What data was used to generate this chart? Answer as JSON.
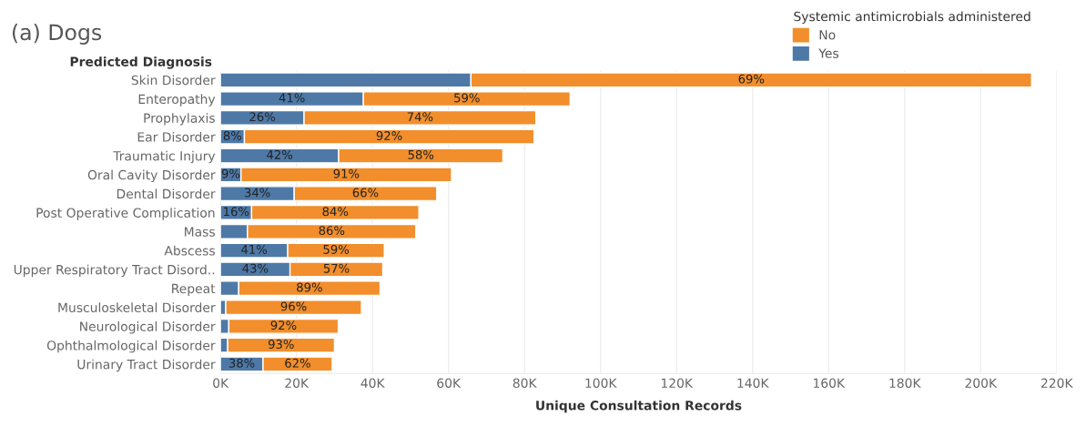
{
  "chart_data": {
    "type": "bar",
    "orientation": "horizontal",
    "stacked": true,
    "title": "(a) Dogs",
    "xlabel": "Unique Consultation Records",
    "ylabel": "Predicted Diagnosis",
    "legend_title": "Systemic antimicrobials administered",
    "categories": [
      "Skin Disorder",
      "Enteropathy",
      "Prophylaxis",
      "Ear Disorder",
      "Traumatic Injury",
      "Oral Cavity Disorder",
      "Dental Disorder",
      "Post Operative Complication",
      "Mass",
      "Abscess",
      "Upper Respiratory Tract Disord..",
      "Repeat",
      "Musculoskeletal Disorder",
      "Neurological Disorder",
      "Ophthalmological Disorder",
      "Urinary Tract Disorder"
    ],
    "series": [
      {
        "name": "Yes",
        "color": "#4e79a7",
        "values": [
          65900,
          37600,
          22000,
          6300,
          31100,
          5400,
          19400,
          8200,
          7100,
          17700,
          18300,
          4800,
          1400,
          2200,
          1900,
          11200
        ]
      },
      {
        "name": "No",
        "color": "#f28e2b",
        "values": [
          147500,
          54400,
          61000,
          76200,
          43200,
          55400,
          37500,
          44000,
          44300,
          25400,
          24400,
          37200,
          35700,
          28800,
          28100,
          18200
        ]
      }
    ],
    "annotations": [
      {
        "text": "41%",
        "x": 18800,
        "y": "Enteropathy"
      },
      {
        "text": "26%",
        "x": 11000,
        "y": "Prophylaxis"
      },
      {
        "text": "8%",
        "x": 3150,
        "y": "Ear Disorder"
      },
      {
        "text": "42%",
        "x": 15550,
        "y": "Traumatic Injury"
      },
      {
        "text": "9%",
        "x": 2700,
        "y": "Oral Cavity Disorder"
      },
      {
        "text": "34%",
        "x": 9700,
        "y": "Dental Disorder"
      },
      {
        "text": "16%",
        "x": 4100,
        "y": "Post Operative Complication"
      },
      {
        "text": "41%",
        "x": 8850,
        "y": "Abscess"
      },
      {
        "text": "43%",
        "x": 9150,
        "y": "Upper Respiratory Tract Disord.."
      },
      {
        "text": "38%",
        "x": 5600,
        "y": "Urinary Tract Disorder"
      },
      {
        "text": "69%",
        "x": 139650,
        "y": "Skin Disorder"
      },
      {
        "text": "59%",
        "x": 64800,
        "y": "Enteropathy"
      },
      {
        "text": "74%",
        "x": 52500,
        "y": "Prophylaxis"
      },
      {
        "text": "92%",
        "x": 44400,
        "y": "Ear Disorder"
      },
      {
        "text": "58%",
        "x": 52700,
        "y": "Traumatic Injury"
      },
      {
        "text": "91%",
        "x": 33100,
        "y": "Oral Cavity Disorder"
      },
      {
        "text": "66%",
        "x": 38150,
        "y": "Dental Disorder"
      },
      {
        "text": "84%",
        "x": 30200,
        "y": "Post Operative Complication"
      },
      {
        "text": "86%",
        "x": 29250,
        "y": "Mass"
      },
      {
        "text": "59%",
        "x": 30400,
        "y": "Abscess"
      },
      {
        "text": "57%",
        "x": 30500,
        "y": "Upper Respiratory Tract Disord.."
      },
      {
        "text": "89%",
        "x": 23400,
        "y": "Repeat"
      },
      {
        "text": "96%",
        "x": 19250,
        "y": "Musculoskeletal Disorder"
      },
      {
        "text": "92%",
        "x": 16600,
        "y": "Neurological Disorder"
      },
      {
        "text": "93%",
        "x": 15950,
        "y": "Ophthalmological Disorder"
      },
      {
        "text": "62%",
        "x": 20300,
        "y": "Urinary Tract Disorder"
      }
    ],
    "xlim": [
      0,
      220000
    ],
    "xticks": [
      {
        "value": 0,
        "label": "0K"
      },
      {
        "value": 20000,
        "label": "20K"
      },
      {
        "value": 40000,
        "label": "40K"
      },
      {
        "value": 60000,
        "label": "60K"
      },
      {
        "value": 80000,
        "label": "80K"
      },
      {
        "value": 100000,
        "label": "100K"
      },
      {
        "value": 120000,
        "label": "120K"
      },
      {
        "value": 140000,
        "label": "140K"
      },
      {
        "value": 160000,
        "label": "160K"
      },
      {
        "value": 180000,
        "label": "180K"
      },
      {
        "value": 200000,
        "label": "200K"
      },
      {
        "value": 220000,
        "label": "220K"
      }
    ],
    "grid": "x",
    "legend": "top right"
  }
}
